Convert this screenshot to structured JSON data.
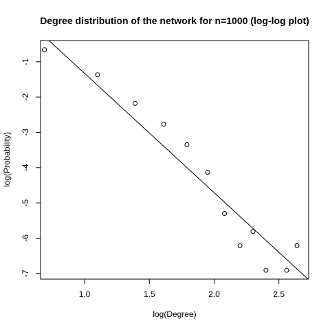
{
  "chart_data": {
    "type": "scatter",
    "title": "Degree distribution of the network for n=1000 (log-log plot)",
    "xlabel": "log(Degree)",
    "ylabel": "log(Probability)",
    "xlim": [
      0.66,
      2.73
    ],
    "ylim": [
      -7.16,
      -0.4
    ],
    "x_ticks": [
      1.0,
      1.5,
      2.0,
      2.5
    ],
    "x_tick_labels": [
      "1.0",
      "1.5",
      "2.0",
      "2.5"
    ],
    "y_ticks": [
      -1,
      -2,
      -3,
      -4,
      -5,
      -6,
      -7
    ],
    "y_tick_labels": [
      "-1",
      "-2",
      "-3",
      "-4",
      "-5",
      "-6",
      "-7"
    ],
    "grid": false,
    "points": [
      {
        "x": 0.69,
        "y": -0.66
      },
      {
        "x": 1.1,
        "y": -1.37
      },
      {
        "x": 1.39,
        "y": -2.18
      },
      {
        "x": 1.61,
        "y": -2.77
      },
      {
        "x": 1.79,
        "y": -3.35
      },
      {
        "x": 1.95,
        "y": -4.13
      },
      {
        "x": 2.08,
        "y": -5.3
      },
      {
        "x": 2.2,
        "y": -6.21
      },
      {
        "x": 2.3,
        "y": -5.81
      },
      {
        "x": 2.4,
        "y": -6.91
      },
      {
        "x": 2.56,
        "y": -6.91
      },
      {
        "x": 2.64,
        "y": -6.21
      }
    ],
    "fit_line": {
      "intercept": 2.05,
      "slope": -3.38
    }
  }
}
